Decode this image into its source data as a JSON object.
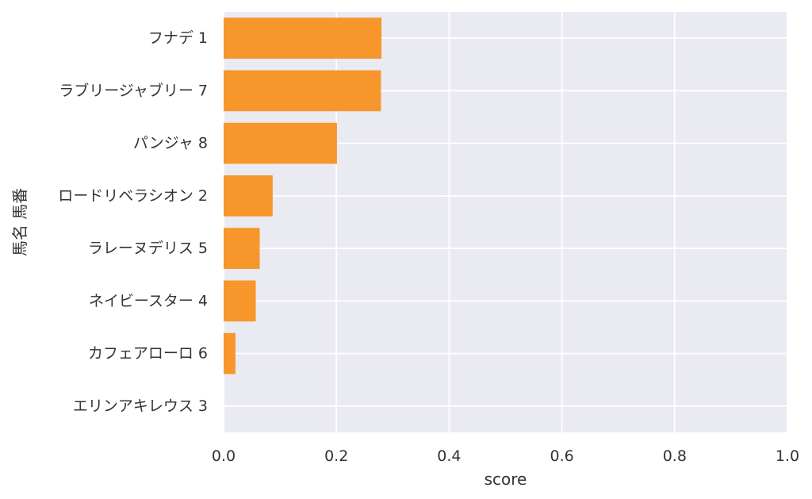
{
  "chart_data": {
    "type": "bar",
    "orientation": "horizontal",
    "categories": [
      "フナデ 1",
      "ラブリージャブリー 7",
      "パンジャ 8",
      "ロードリベラシオン 2",
      "ラレーヌデリス 5",
      "ネイビースター 4",
      "カフェアローロ 6",
      "エリンアキレウス 3"
    ],
    "values": [
      0.28,
      0.279,
      0.201,
      0.087,
      0.064,
      0.057,
      0.021,
      0.0
    ],
    "xlabel": "score",
    "ylabel": "馬名 馬番",
    "xlim": [
      0,
      1.0
    ],
    "xticks": [
      "0.0",
      "0.2",
      "0.4",
      "0.6",
      "0.8",
      "1.0"
    ],
    "grid": true,
    "colors": {
      "bar": "#f7962a",
      "background": "#eaeaf2",
      "grid": "#ffffff"
    }
  }
}
